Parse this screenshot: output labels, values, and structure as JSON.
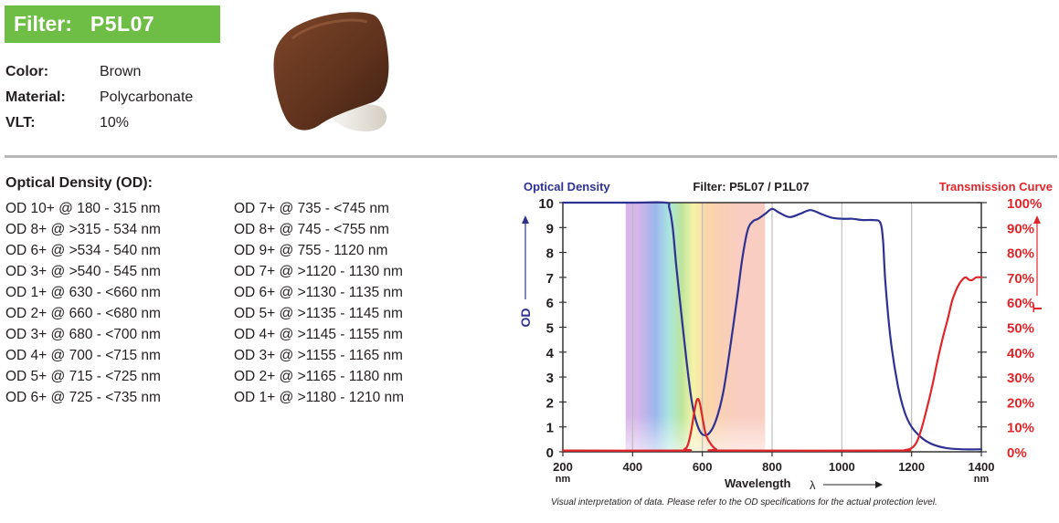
{
  "header": {
    "filter_label": "Filter:",
    "filter_value": "P5L07"
  },
  "properties": [
    {
      "key": "Color:",
      "value": "Brown"
    },
    {
      "key": "Material:",
      "value": "Polycarbonate"
    },
    {
      "key": "VLT:",
      "value": "10%"
    }
  ],
  "lens": {
    "color": "#6b3a24"
  },
  "od_section": {
    "title": "Optical Density (OD):",
    "col1": [
      "OD 10+ @ 180 - 315 nm",
      "OD 8+ @ >315 - 534 nm",
      "OD 6+ @ >534 - 540 nm",
      "OD 3+ @ >540 - 545 nm",
      "OD 1+ @ 630 - <660 nm",
      "OD 2+ @ 660 - <680 nm",
      "OD 3+ @ 680 - <700 nm",
      "OD 4+ @ 700 - <715 nm",
      "OD 5+ @ 715 - <725 nm",
      "OD 6+ @ 725 - <735 nm"
    ],
    "col2": [
      "OD 7+ @ 735 - <745 nm",
      "OD 8+ @ 745 - <755 nm",
      "OD 9+ @ 755 - 1120 nm",
      "OD 7+ @ >1120 - 1130 nm",
      "OD 6+ @ >1130 - 1135 nm",
      "OD 5+ @ >1135 - 1145 nm",
      "OD 4+ @ >1145 - 1155 nm",
      "OD 3+ @ >1155 - 1165 nm",
      "OD 2+ @ >1165 - 1180 nm",
      "OD 1+ @ >1180 - 1210 nm"
    ]
  },
  "chart_data": {
    "type": "line",
    "title": "Filter: P5L07 / P1L07",
    "left_title": "Optical Density",
    "right_title": "Transmission Curve",
    "xlabel": "Wavelength",
    "xunit": "nm",
    "lambda": "λ",
    "left_axis_label": "OD",
    "right_axis_label": "T",
    "xlim": [
      200,
      1400
    ],
    "ylim_left": [
      0,
      10
    ],
    "ylim_right": [
      0,
      100
    ],
    "x_ticks": [
      200,
      400,
      600,
      800,
      1000,
      1200,
      1400
    ],
    "x_tick_labels": [
      "200",
      "400",
      "600",
      "800",
      "1000",
      "1200",
      "1400"
    ],
    "y_ticks_left": [
      0,
      1,
      2,
      3,
      4,
      5,
      6,
      7,
      8,
      9,
      10
    ],
    "y_tick_labels_left": [
      "0",
      "1",
      "2",
      "3",
      "4",
      "5",
      "6",
      "7",
      "8",
      "9",
      "10"
    ],
    "y_ticks_right": [
      0,
      10,
      20,
      30,
      40,
      50,
      60,
      70,
      80,
      90,
      100
    ],
    "y_tick_labels_right": [
      "0%",
      "10%",
      "20%",
      "30%",
      "40%",
      "50%",
      "60%",
      "70%",
      "80%",
      "90%",
      "100%"
    ],
    "grid": true,
    "colors": {
      "od": "#2e3192",
      "transmission": "#e0262b",
      "frame": "#333333"
    },
    "series": [
      {
        "axis": "left",
        "x": [
          200,
          400,
          495,
          505,
          515,
          525,
          540,
          555,
          570,
          585,
          600,
          620,
          640,
          660,
          680,
          700,
          715,
          730,
          745,
          760,
          780,
          800,
          820,
          850,
          880,
          910,
          940,
          970,
          1000,
          1030,
          1060,
          1090,
          1110,
          1118,
          1125,
          1140,
          1160,
          1180,
          1200,
          1230,
          1260,
          1300,
          1350,
          1400
        ],
        "y": [
          10,
          10,
          10,
          9.8,
          9.0,
          7.5,
          5.5,
          3.6,
          2.0,
          1.1,
          0.7,
          0.75,
          1.3,
          2.4,
          4.2,
          6.2,
          7.8,
          8.9,
          9.25,
          9.35,
          9.55,
          9.75,
          9.6,
          9.42,
          9.55,
          9.7,
          9.55,
          9.4,
          9.35,
          9.35,
          9.3,
          9.3,
          9.2,
          8.5,
          6.8,
          4.5,
          2.7,
          1.6,
          1.0,
          0.55,
          0.3,
          0.15,
          0.1,
          0.1
        ]
      },
      {
        "axis": "right",
        "x": [
          200,
          540,
          548,
          556,
          563,
          570,
          578,
          585,
          592,
          600,
          610,
          625,
          640,
          660,
          1150,
          1180,
          1200,
          1215,
          1230,
          1245,
          1260,
          1275,
          1290,
          1305,
          1315,
          1325,
          1335,
          1345,
          1355,
          1365,
          1375,
          1385,
          1400
        ],
        "y": [
          0.5,
          0.5,
          1,
          2,
          5,
          10,
          17,
          21,
          20,
          14,
          7,
          3,
          1,
          0.5,
          0.5,
          0.7,
          1.5,
          4,
          10,
          18,
          27,
          37,
          46,
          54,
          60,
          64,
          67,
          69,
          70,
          69,
          69,
          70,
          70
        ]
      }
    ],
    "spectrum_bands": [
      {
        "x0": 380,
        "x1": 440,
        "color": "#b57ad8"
      },
      {
        "x0": 440,
        "x1": 490,
        "color": "#7a9ee6"
      },
      {
        "x0": 490,
        "x1": 520,
        "color": "#8ddcd4"
      },
      {
        "x0": 520,
        "x1": 560,
        "color": "#a5dc7a"
      },
      {
        "x0": 560,
        "x1": 590,
        "color": "#f2ef8a"
      },
      {
        "x0": 590,
        "x1": 630,
        "color": "#f7c98c"
      },
      {
        "x0": 630,
        "x1": 780,
        "color": "#f4a48e"
      }
    ]
  },
  "footnote": "Visual interpretation of data. Please refer to the OD specifications for the actual protection level."
}
